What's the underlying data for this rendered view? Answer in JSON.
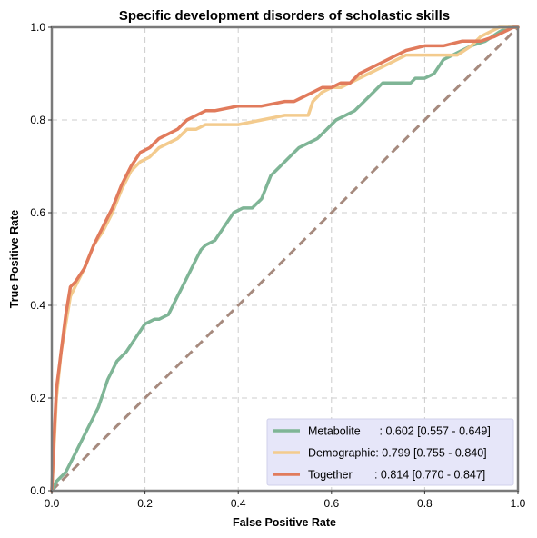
{
  "chart_data": {
    "type": "line",
    "title": "Specific development disorders of scholastic skills",
    "xlabel": "False Positive Rate",
    "ylabel": "True Positive Rate",
    "xlim": [
      0,
      1
    ],
    "ylim": [
      0,
      1
    ],
    "xticks": [
      "0.0",
      "0.2",
      "0.4",
      "0.6",
      "0.8",
      "1.0"
    ],
    "yticks": [
      "0.0",
      "0.2",
      "0.4",
      "0.6",
      "0.8",
      "1.0"
    ],
    "grid": true,
    "legend_position": "lower-right",
    "reference_line": {
      "x": [
        0,
        1
      ],
      "y": [
        0,
        1
      ],
      "color": "#a68a7e",
      "style": "dashed"
    },
    "series": [
      {
        "name": "Metabolite",
        "legend_label": "Metabolite      : 0.602 [0.557 - 0.649]",
        "color": "#7fb596",
        "x": [
          0,
          0.01,
          0.03,
          0.05,
          0.07,
          0.09,
          0.1,
          0.12,
          0.14,
          0.16,
          0.18,
          0.2,
          0.22,
          0.23,
          0.25,
          0.27,
          0.29,
          0.3,
          0.31,
          0.32,
          0.33,
          0.35,
          0.37,
          0.39,
          0.41,
          0.43,
          0.45,
          0.47,
          0.49,
          0.51,
          0.53,
          0.55,
          0.57,
          0.59,
          0.61,
          0.63,
          0.65,
          0.67,
          0.69,
          0.71,
          0.73,
          0.75,
          0.77,
          0.78,
          0.8,
          0.82,
          0.84,
          0.86,
          0.88,
          0.9,
          0.93,
          0.96,
          0.98,
          1.0
        ],
        "y": [
          0,
          0.02,
          0.04,
          0.08,
          0.12,
          0.16,
          0.18,
          0.24,
          0.28,
          0.3,
          0.33,
          0.36,
          0.37,
          0.37,
          0.38,
          0.42,
          0.46,
          0.48,
          0.5,
          0.52,
          0.53,
          0.54,
          0.57,
          0.6,
          0.61,
          0.61,
          0.63,
          0.68,
          0.7,
          0.72,
          0.74,
          0.75,
          0.76,
          0.78,
          0.8,
          0.81,
          0.82,
          0.84,
          0.86,
          0.88,
          0.88,
          0.88,
          0.88,
          0.89,
          0.89,
          0.9,
          0.93,
          0.94,
          0.95,
          0.96,
          0.97,
          0.99,
          1.0,
          1.0
        ]
      },
      {
        "name": "Demographic",
        "legend_label": "Demographic: 0.799 [0.755 - 0.840]",
        "color": "#f3cb8e",
        "x": [
          0,
          0.005,
          0.01,
          0.02,
          0.03,
          0.04,
          0.05,
          0.07,
          0.09,
          0.11,
          0.13,
          0.15,
          0.17,
          0.19,
          0.21,
          0.23,
          0.25,
          0.27,
          0.29,
          0.31,
          0.33,
          0.35,
          0.4,
          0.45,
          0.5,
          0.55,
          0.56,
          0.58,
          0.6,
          0.62,
          0.64,
          0.66,
          0.68,
          0.7,
          0.72,
          0.74,
          0.76,
          0.8,
          0.84,
          0.87,
          0.9,
          0.92,
          0.94,
          0.96,
          0.98,
          1.0
        ],
        "y": [
          0,
          0.1,
          0.2,
          0.3,
          0.36,
          0.42,
          0.44,
          0.48,
          0.53,
          0.56,
          0.6,
          0.65,
          0.69,
          0.71,
          0.72,
          0.74,
          0.75,
          0.76,
          0.78,
          0.78,
          0.79,
          0.79,
          0.79,
          0.8,
          0.81,
          0.81,
          0.84,
          0.86,
          0.87,
          0.87,
          0.88,
          0.89,
          0.9,
          0.91,
          0.92,
          0.93,
          0.94,
          0.94,
          0.94,
          0.94,
          0.96,
          0.98,
          0.99,
          1.0,
          1.0,
          1.0
        ]
      },
      {
        "name": "Together",
        "legend_label": "Together       : 0.814 [0.770 - 0.847]",
        "color": "#e17b5c",
        "x": [
          0,
          0.005,
          0.01,
          0.02,
          0.03,
          0.04,
          0.05,
          0.07,
          0.09,
          0.11,
          0.13,
          0.15,
          0.17,
          0.19,
          0.21,
          0.23,
          0.25,
          0.27,
          0.29,
          0.31,
          0.33,
          0.35,
          0.4,
          0.45,
          0.5,
          0.52,
          0.54,
          0.56,
          0.58,
          0.6,
          0.62,
          0.64,
          0.66,
          0.68,
          0.7,
          0.72,
          0.74,
          0.76,
          0.8,
          0.84,
          0.88,
          0.92,
          0.95,
          0.97,
          0.99,
          1.0
        ],
        "y": [
          0,
          0.12,
          0.22,
          0.3,
          0.38,
          0.44,
          0.45,
          0.48,
          0.53,
          0.57,
          0.61,
          0.66,
          0.7,
          0.73,
          0.74,
          0.76,
          0.77,
          0.78,
          0.8,
          0.81,
          0.82,
          0.82,
          0.83,
          0.83,
          0.84,
          0.84,
          0.85,
          0.86,
          0.87,
          0.87,
          0.88,
          0.88,
          0.9,
          0.91,
          0.92,
          0.93,
          0.94,
          0.95,
          0.96,
          0.96,
          0.97,
          0.97,
          0.98,
          0.99,
          1.0,
          1.0
        ]
      }
    ]
  }
}
